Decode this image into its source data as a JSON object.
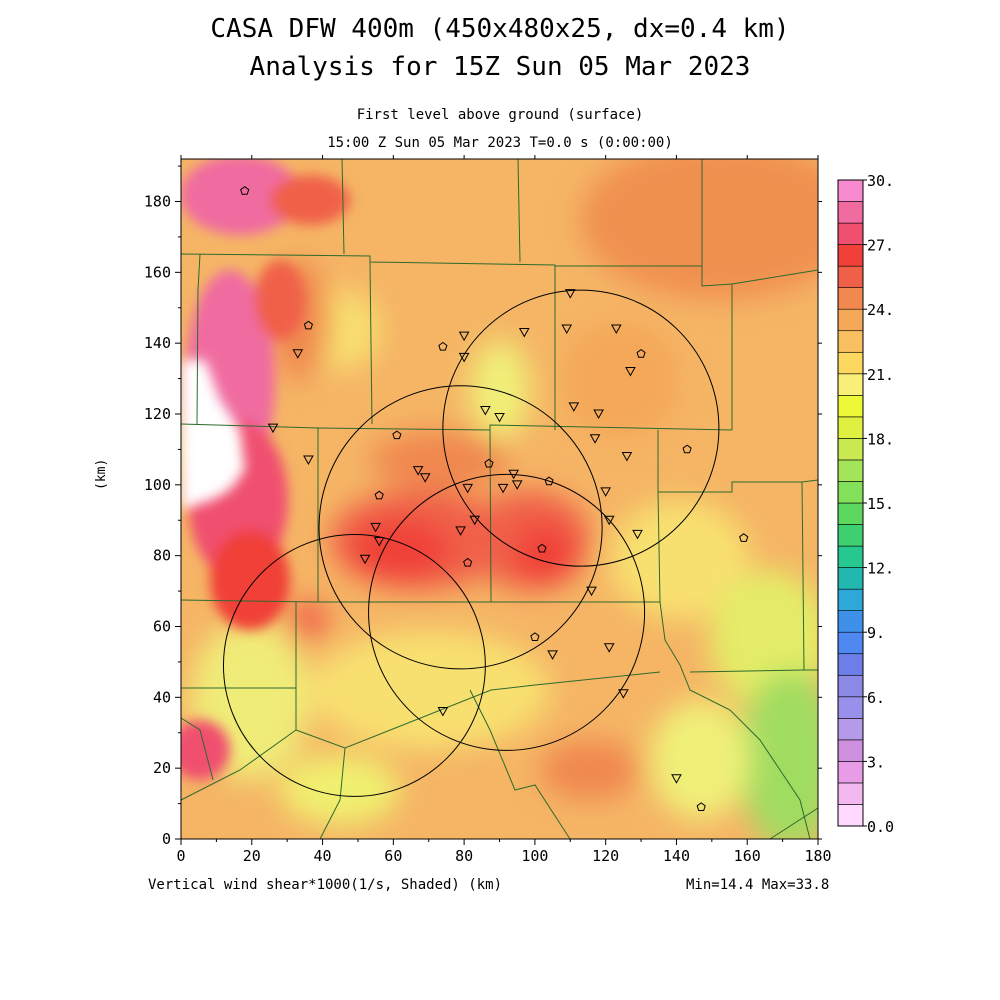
{
  "title": {
    "line1": "CASA DFW 400m (450x480x25, dx=0.4 km)",
    "line2": "Analysis for 15Z Sun 05 Mar 2023"
  },
  "subtitle": {
    "line1": "First level above ground (surface)",
    "line2": "15:00 Z Sun 05 Mar 2023    T=0.0 s (0:00:00)"
  },
  "axes": {
    "x_ticks": [
      "0",
      "20",
      "40",
      "60",
      "80",
      "100",
      "120",
      "140",
      "160",
      "180"
    ],
    "y_ticks": [
      "0",
      "20",
      "40",
      "60",
      "80",
      "100",
      "120",
      "140",
      "160",
      "180"
    ],
    "y_label": "(km)",
    "x_range": [
      0,
      180
    ],
    "y_range": [
      0,
      192
    ]
  },
  "field_label": "Vertical wind shear*1000(1/s, Shaded)  (km)",
  "min_max": "Min=14.4 Max=33.8",
  "colorbar": {
    "labels": [
      "30.",
      "27.",
      "24.",
      "21.",
      "18.",
      "15.",
      "12.",
      "9.",
      "6.",
      "3.",
      "0.0"
    ],
    "colors_bottom_to_top": [
      "#ffd8ff",
      "#f4b8f0",
      "#e89be6",
      "#d090e0",
      "#b49ae8",
      "#9890ea",
      "#8c88e6",
      "#6e7ee8",
      "#4e88f0",
      "#3e90e8",
      "#2ea8d8",
      "#22b8b0",
      "#26c890",
      "#3ed070",
      "#5cd85e",
      "#82e05a",
      "#a4e45a",
      "#c8ea50",
      "#e0f040",
      "#ecf838",
      "#f8f078",
      "#fcd860",
      "#f8c060",
      "#f4a858",
      "#f08850",
      "#f06048",
      "#f04038",
      "#f05070",
      "#f06ca0",
      "#f88ad0"
    ]
  },
  "map": {
    "background_color": "#f5b565",
    "line_color": "#2d6a2d"
  },
  "chart_data": {
    "type": "heatmap",
    "title": "CASA DFW 400m (450x480x25, dx=0.4 km) Analysis for 15Z Sun 05 Mar 2023",
    "xlabel": "(km)",
    "ylabel": "(km)",
    "xlim": [
      0,
      180
    ],
    "ylim": [
      0,
      192
    ],
    "value_range": [
      0,
      30
    ],
    "min": 14.4,
    "max": 33.8,
    "radar_coverage_circles_km": [
      {
        "cx": 49,
        "cy": 49,
        "r": 37
      },
      {
        "cx": 79,
        "cy": 88,
        "r": 40
      },
      {
        "cx": 92,
        "cy": 64,
        "r": 39
      },
      {
        "cx": 113,
        "cy": 116,
        "r": 39
      }
    ],
    "sites_triangle_km": [
      [
        110,
        154
      ],
      [
        109,
        144
      ],
      [
        123,
        144
      ],
      [
        97,
        143
      ],
      [
        80,
        142
      ],
      [
        80,
        136
      ],
      [
        127,
        132
      ],
      [
        111,
        122
      ],
      [
        118,
        120
      ],
      [
        86,
        121
      ],
      [
        90,
        119
      ],
      [
        26,
        116
      ],
      [
        117,
        113
      ],
      [
        126,
        108
      ],
      [
        36,
        107
      ],
      [
        67,
        104
      ],
      [
        69,
        102
      ],
      [
        94,
        103
      ],
      [
        95,
        100
      ],
      [
        91,
        99
      ],
      [
        81,
        99
      ],
      [
        120,
        98
      ],
      [
        121,
        90
      ],
      [
        129,
        86
      ],
      [
        83,
        90
      ],
      [
        79,
        87
      ],
      [
        55,
        88
      ],
      [
        56,
        84
      ],
      [
        52,
        79
      ],
      [
        116,
        70
      ],
      [
        121,
        54
      ],
      [
        105,
        52
      ],
      [
        125,
        41
      ],
      [
        74,
        36
      ],
      [
        140,
        17
      ],
      [
        33,
        137
      ]
    ],
    "sites_pentagon_km": [
      [
        18,
        183
      ],
      [
        36,
        145
      ],
      [
        74,
        139
      ],
      [
        130,
        137
      ],
      [
        61,
        114
      ],
      [
        87,
        106
      ],
      [
        56,
        97
      ],
      [
        104,
        101
      ],
      [
        102,
        82
      ],
      [
        81,
        78
      ],
      [
        100,
        57
      ],
      [
        159,
        85
      ],
      [
        143,
        110
      ],
      [
        147,
        9
      ]
    ]
  }
}
